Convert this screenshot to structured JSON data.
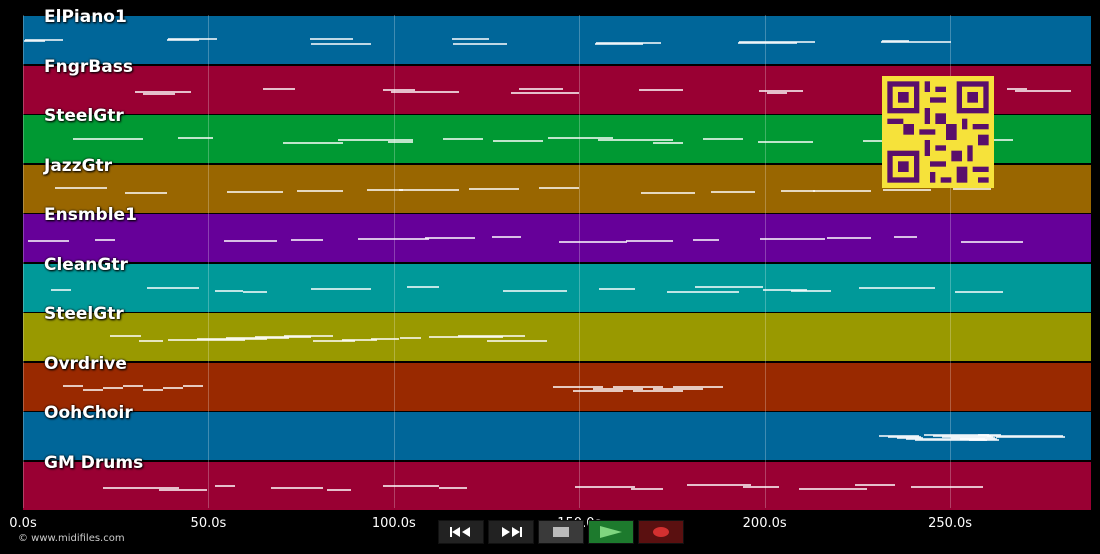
{
  "tracks": [
    {
      "label": "ElPiano1",
      "color": "#006699"
    },
    {
      "label": "FngrBass",
      "color": "#990033"
    },
    {
      "label": "SteelGtr",
      "color": "#009933"
    },
    {
      "label": "JazzGtr",
      "color": "#996600"
    },
    {
      "label": "Ensmble1",
      "color": "#660099"
    },
    {
      "label": "CleanGtr",
      "color": "#009999"
    },
    {
      "label": "SteelGtr",
      "color": "#999900"
    },
    {
      "label": "Ovrdrive",
      "color": "#992900"
    },
    {
      "label": "OohChoir",
      "color": "#006699"
    },
    {
      "label": "GM Drums",
      "color": "#990033"
    }
  ],
  "timeline": {
    "ticks": [
      "0.0s",
      "50.0s",
      "100.0s",
      "150.0s",
      "200.0s",
      "250.0s"
    ],
    "duration_s": 288
  },
  "copyright": "© www.midifiles.com",
  "controls": {
    "rewind_icon": "rewind-icon",
    "fast_forward_icon": "fast-forward-icon",
    "stop_icon": "stop-icon",
    "play_icon": "play-icon",
    "record_icon": "record-icon"
  },
  "overlay": {
    "qr_color": "#f6e23a",
    "qr_dark": "#5a0f6b"
  }
}
